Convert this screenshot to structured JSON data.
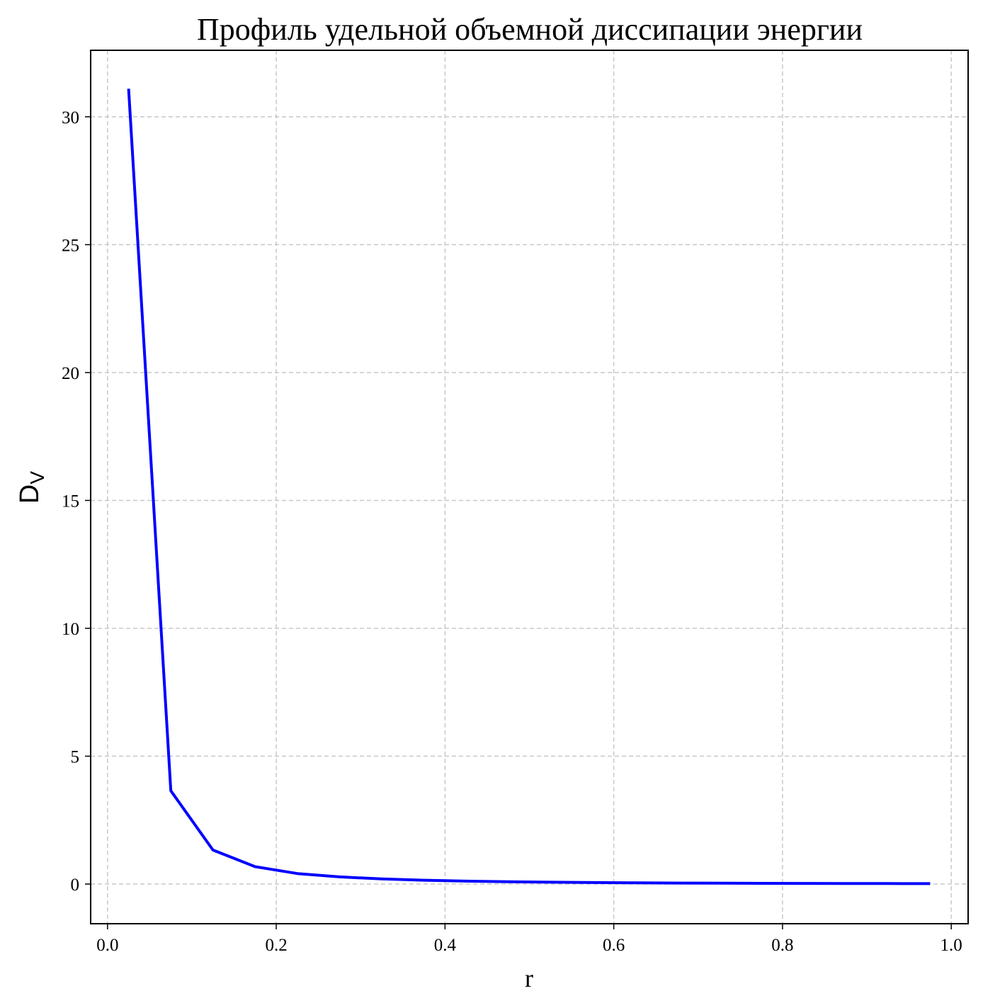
{
  "chart_data": {
    "type": "line",
    "title": "Профиль удельной объемной диссипации энергии",
    "xlabel": "r",
    "ylabel": "D",
    "ylabel_subscript": "V",
    "xlim": [
      -0.02,
      1.02
    ],
    "ylim": [
      -1.55,
      32.6
    ],
    "xticks": [
      0.0,
      0.2,
      0.4,
      0.6,
      0.8,
      1.0
    ],
    "xtick_labels": [
      "0.0",
      "0.2",
      "0.4",
      "0.6",
      "0.8",
      "1.0"
    ],
    "yticks": [
      0,
      5,
      10,
      15,
      20,
      25,
      30
    ],
    "ytick_labels": [
      "0",
      "5",
      "10",
      "15",
      "20",
      "25",
      "30"
    ],
    "grid": true,
    "series": [
      {
        "color": "#0000ff",
        "x": [
          0.025,
          0.075,
          0.125,
          0.175,
          0.225,
          0.275,
          0.325,
          0.375,
          0.425,
          0.475,
          0.525,
          0.575,
          0.625,
          0.675,
          0.725,
          0.775,
          0.825,
          0.875,
          0.925,
          0.975
        ],
        "y": [
          31.1,
          3.65,
          1.33,
          0.68,
          0.41,
          0.28,
          0.2,
          0.15,
          0.115,
          0.09,
          0.072,
          0.059,
          0.049,
          0.041,
          0.035,
          0.03,
          0.026,
          0.023,
          0.02,
          0.018
        ]
      }
    ]
  }
}
